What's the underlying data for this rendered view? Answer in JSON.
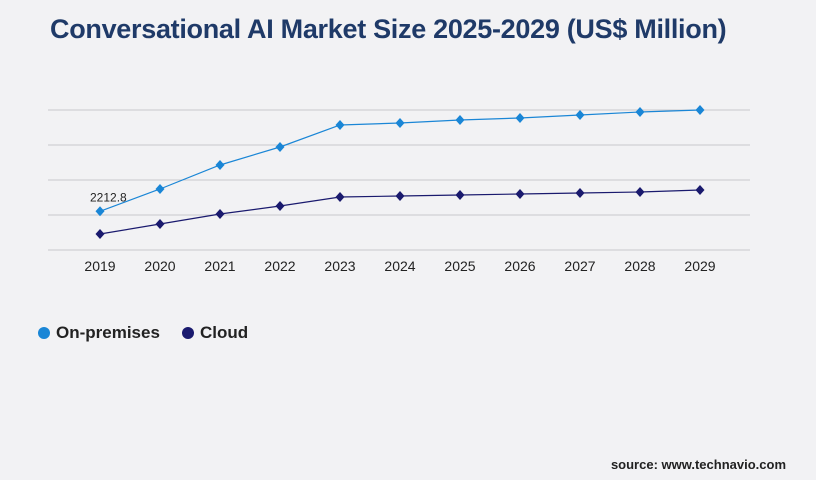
{
  "chart_data": {
    "type": "line",
    "title": "Conversational AI Market Size 2025-2029 (US$ Million)",
    "categories": [
      "2019",
      "2020",
      "2021",
      "2022",
      "2023",
      "2024",
      "2025",
      "2026",
      "2027",
      "2028",
      "2029"
    ],
    "series": [
      {
        "name": "On-premises",
        "color": "#1a86d6",
        "values": [
          2212.8,
          3486,
          4857,
          5886,
          7143,
          7257,
          7429,
          7543,
          7714,
          7886,
          8000
        ]
      },
      {
        "name": "Cloud",
        "color": "#1a1a6e",
        "values": [
          914,
          1486,
          2057,
          2514,
          3029,
          3086,
          3143,
          3200,
          3257,
          3314,
          3429
        ]
      }
    ],
    "data_labels": [
      {
        "series": "On-premises",
        "category": "2019",
        "text": "2212.8"
      }
    ],
    "ylim": [
      0,
      8000
    ],
    "grid": true,
    "legend": "bottom-left",
    "xlabel": "",
    "ylabel": ""
  },
  "source": "source: www.technavio.com"
}
